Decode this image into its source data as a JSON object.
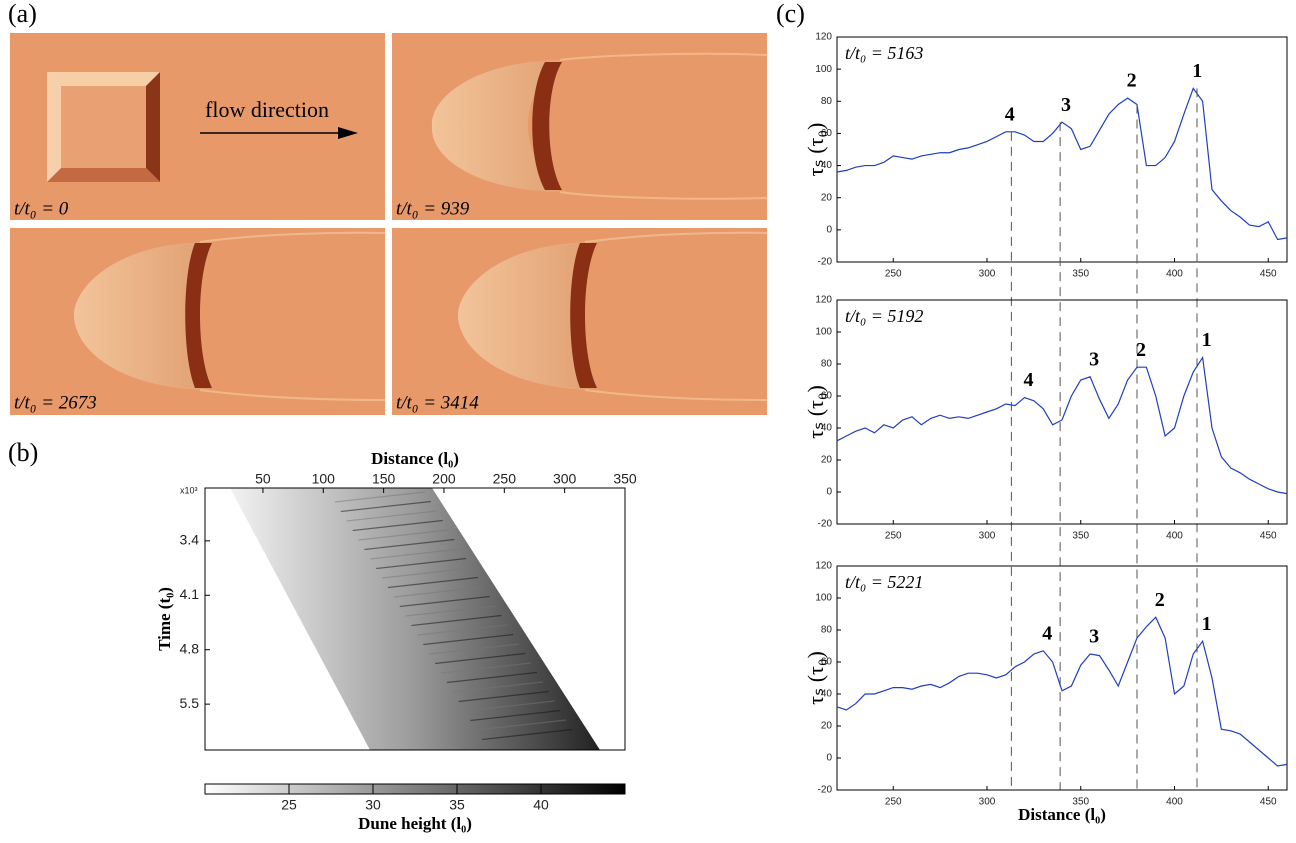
{
  "panel_labels": [
    "(a)",
    "(b)",
    "(c)"
  ],
  "panel_a": {
    "arrow_text": "flow direction",
    "frames": [
      "t/t₀ = 0",
      "t/t₀ = 939",
      "t/t₀ = 2673",
      "t/t₀ = 3414"
    ]
  },
  "chart_data": [
    {
      "type": "heatmap",
      "xlabel": "Distance (l₀)",
      "ylabel": "Time (t₀)",
      "y_multiplier": "x10³",
      "xlim": [
        2,
        350
      ],
      "xticks": [
        50,
        100,
        150,
        200,
        250,
        300,
        350
      ],
      "ylim": [
        2.72,
        6.09
      ],
      "yticks": [
        3.4,
        4.1,
        4.8,
        5.5
      ],
      "colorbar_label": "Dune height (l₀)",
      "clim": [
        20,
        45
      ],
      "cticks": [
        25,
        30,
        35,
        40
      ]
    },
    {
      "type": "line",
      "annotation": "t/t₀ = 5163",
      "ylabel": "τₛ (τ₀)",
      "xlim": [
        220,
        460
      ],
      "xticks": [
        250,
        300,
        350,
        400,
        450
      ],
      "ylim": [
        -20,
        120
      ],
      "yticks": [
        -20,
        0,
        20,
        40,
        60,
        80,
        100,
        120
      ],
      "peak_labels": [
        "4",
        "3",
        "2",
        "1"
      ],
      "guides_x": [
        313,
        339,
        380,
        412
      ],
      "x": [
        220,
        225,
        230,
        235,
        240,
        245,
        250,
        255,
        260,
        265,
        270,
        275,
        280,
        285,
        290,
        295,
        300,
        305,
        310,
        315,
        320,
        325,
        330,
        335,
        340,
        345,
        350,
        355,
        360,
        365,
        370,
        375,
        380,
        385,
        390,
        395,
        400,
        405,
        410,
        415,
        420,
        425,
        430,
        435,
        440,
        445,
        450,
        455,
        460
      ],
      "series": [
        {
          "color": "#1f3fbf",
          "values": [
            36,
            37,
            39,
            40,
            40,
            42,
            46,
            45,
            44,
            46,
            47,
            48,
            48,
            50,
            51,
            53,
            55,
            58,
            61,
            61,
            59,
            55,
            55,
            60,
            67,
            63,
            50,
            52,
            62,
            72,
            78,
            82,
            78,
            40,
            40,
            45,
            55,
            72,
            88,
            80,
            25,
            18,
            12,
            8,
            3,
            2,
            5,
            -6,
            -5
          ]
        }
      ]
    },
    {
      "type": "line",
      "annotation": "t/t₀ = 5192",
      "ylabel": "τₛ (τ₀)",
      "xlim": [
        220,
        460
      ],
      "xticks": [
        250,
        300,
        350,
        400,
        450
      ],
      "ylim": [
        -20,
        120
      ],
      "yticks": [
        -20,
        0,
        20,
        40,
        60,
        80,
        100,
        120
      ],
      "peak_labels": [
        "4",
        "3",
        "2",
        "1"
      ],
      "x": [
        220,
        225,
        230,
        235,
        240,
        245,
        250,
        255,
        260,
        265,
        270,
        275,
        280,
        285,
        290,
        295,
        300,
        305,
        310,
        315,
        320,
        325,
        330,
        335,
        340,
        345,
        350,
        355,
        360,
        365,
        370,
        375,
        380,
        385,
        390,
        395,
        400,
        405,
        410,
        415,
        420,
        425,
        430,
        435,
        440,
        445,
        450,
        455,
        460
      ],
      "series": [
        {
          "color": "#1f3fbf",
          "values": [
            32,
            35,
            38,
            40,
            37,
            42,
            40,
            45,
            47,
            42,
            46,
            48,
            46,
            47,
            46,
            48,
            50,
            52,
            55,
            54,
            59,
            57,
            52,
            42,
            45,
            60,
            70,
            72,
            58,
            46,
            55,
            70,
            78,
            78,
            60,
            35,
            40,
            60,
            75,
            84,
            40,
            22,
            15,
            12,
            8,
            5,
            2,
            0,
            -1
          ]
        }
      ]
    },
    {
      "type": "line",
      "annotation": "t/t₀ = 5221",
      "ylabel": "τₛ (τ₀)",
      "xlabel": "Distance (l₀)",
      "xlim": [
        220,
        460
      ],
      "xticks": [
        250,
        300,
        350,
        400,
        450
      ],
      "ylim": [
        -20,
        120
      ],
      "yticks": [
        -20,
        0,
        20,
        40,
        60,
        80,
        100,
        120
      ],
      "peak_labels": [
        "4",
        "3",
        "2",
        "1"
      ],
      "x": [
        220,
        225,
        230,
        235,
        240,
        245,
        250,
        255,
        260,
        265,
        270,
        275,
        280,
        285,
        290,
        295,
        300,
        305,
        310,
        315,
        320,
        325,
        330,
        335,
        340,
        345,
        350,
        355,
        360,
        365,
        370,
        375,
        380,
        385,
        390,
        395,
        400,
        405,
        410,
        415,
        420,
        425,
        430,
        435,
        440,
        445,
        450,
        455,
        460
      ],
      "series": [
        {
          "color": "#1f3fbf",
          "values": [
            32,
            30,
            34,
            40,
            40,
            42,
            44,
            44,
            43,
            45,
            46,
            44,
            47,
            51,
            53,
            53,
            52,
            50,
            52,
            57,
            60,
            65,
            67,
            60,
            42,
            45,
            58,
            65,
            64,
            55,
            45,
            60,
            75,
            82,
            88,
            75,
            40,
            45,
            65,
            73,
            50,
            18,
            17,
            15,
            10,
            5,
            0,
            -5,
            -4
          ]
        }
      ]
    }
  ]
}
